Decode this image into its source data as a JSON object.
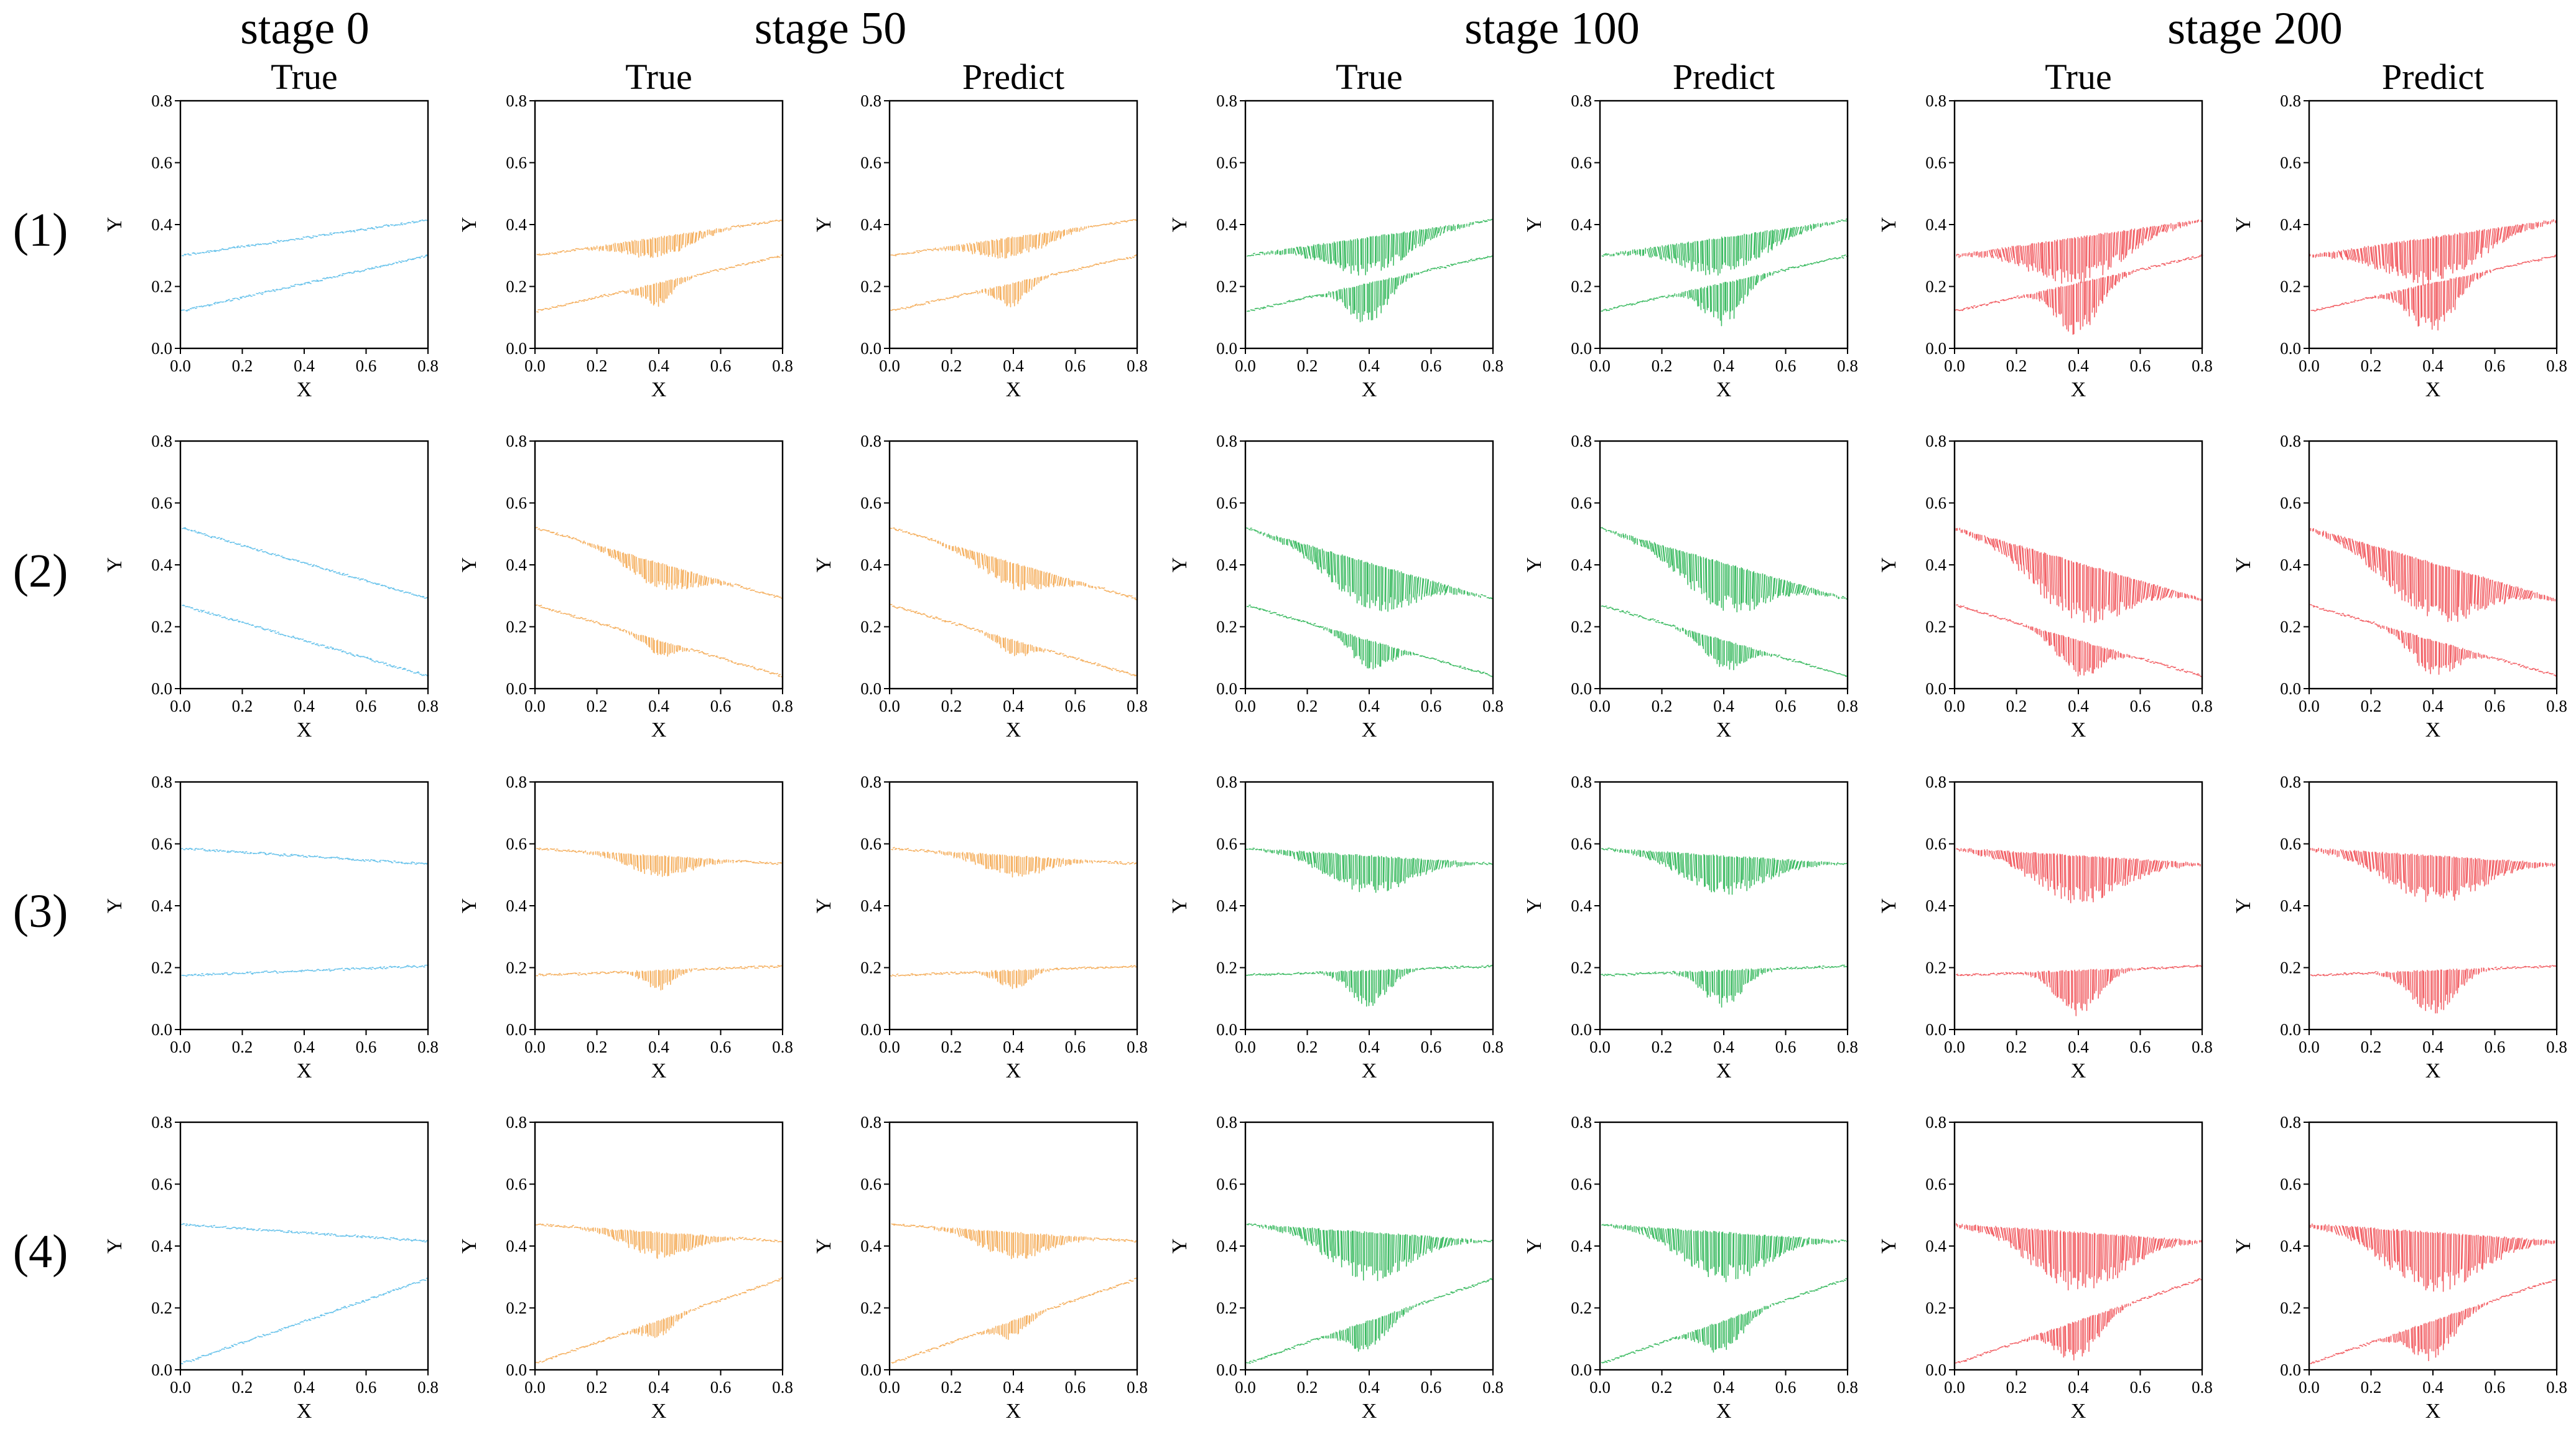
{
  "stage_titles": [
    "stage 0",
    "stage 50",
    "stage 100",
    "stage 200"
  ],
  "column_titles": [
    "True",
    "True",
    "Predict",
    "True",
    "Predict",
    "True",
    "Predict"
  ],
  "row_labels": [
    "(1)",
    "(2)",
    "(3)",
    "(4)"
  ],
  "colors": {
    "stage 0": "#4fb8e8",
    "stage 50": "#f3a347",
    "stage 100": "#1eb04a",
    "stage 200": "#f0474c"
  },
  "chart_data": {
    "type": "line",
    "description_of_grid": "4 rows x 7 panels; columns: stage 0 True, stage 50 True/Predict, stage 100 True/Predict, stage 200 True/Predict",
    "xlabel": "X",
    "ylabel": "Y",
    "xlim": [
      0.0,
      0.8
    ],
    "ylim": [
      0.0,
      0.8
    ],
    "xticks": [
      "0.0",
      "0.2",
      "0.4",
      "0.6",
      "0.8"
    ],
    "yticks": [
      "0.0",
      "0.2",
      "0.4",
      "0.6",
      "0.8"
    ],
    "columns": [
      {
        "stage": "stage 0",
        "label": "True",
        "depth": 0.0,
        "spread": 0.5
      },
      {
        "stage": "stage 50",
        "label": "True",
        "depth": 0.35,
        "spread": 1.0
      },
      {
        "stage": "stage 50",
        "label": "Predict",
        "depth": 0.35,
        "spread": 1.05
      },
      {
        "stage": "stage 100",
        "label": "True",
        "depth": 0.65,
        "spread": 1.3
      },
      {
        "stage": "stage 100",
        "label": "Predict",
        "depth": 0.65,
        "spread": 1.35
      },
      {
        "stage": "stage 200",
        "label": "True",
        "depth": 0.8,
        "spread": 1.45
      },
      {
        "stage": "stage 200",
        "label": "Predict",
        "depth": 0.8,
        "spread": 1.5
      }
    ],
    "rows": [
      {
        "label": "(1)",
        "upper_line": {
          "x": [
            0.0,
            0.8
          ],
          "y": [
            0.3,
            0.415
          ]
        },
        "lower_line": {
          "x": [
            0.0,
            0.8
          ],
          "y": [
            0.12,
            0.3
          ]
        },
        "upper_dip_min_y": 0.17,
        "lower_dip_min_y": 0.0,
        "dip_center_x": 0.4
      },
      {
        "label": "(2)",
        "upper_line": {
          "x": [
            0.0,
            0.8
          ],
          "y": [
            0.52,
            0.29
          ]
        },
        "lower_line": {
          "x": [
            0.0,
            0.8
          ],
          "y": [
            0.27,
            0.04
          ]
        },
        "upper_dip_min_y": 0.17,
        "lower_dip_min_y": 0.01,
        "dip_center_x": 0.4
      },
      {
        "label": "(3)",
        "upper_line": {
          "x": [
            0.0,
            0.8
          ],
          "y": [
            0.585,
            0.535
          ]
        },
        "lower_line": {
          "x": [
            0.0,
            0.8
          ],
          "y": [
            0.175,
            0.205
          ]
        },
        "upper_dip_min_y": 0.37,
        "lower_dip_min_y": 0.01,
        "dip_center_x": 0.4
      },
      {
        "label": "(4)",
        "upper_line": {
          "x": [
            0.0,
            0.8
          ],
          "y": [
            0.47,
            0.415
          ]
        },
        "lower_line": {
          "x": [
            0.0,
            0.8
          ],
          "y": [
            0.02,
            0.295
          ]
        },
        "upper_dip_min_y": 0.2,
        "lower_dip_min_y": 0.0,
        "dip_center_x": 0.4
      }
    ]
  }
}
